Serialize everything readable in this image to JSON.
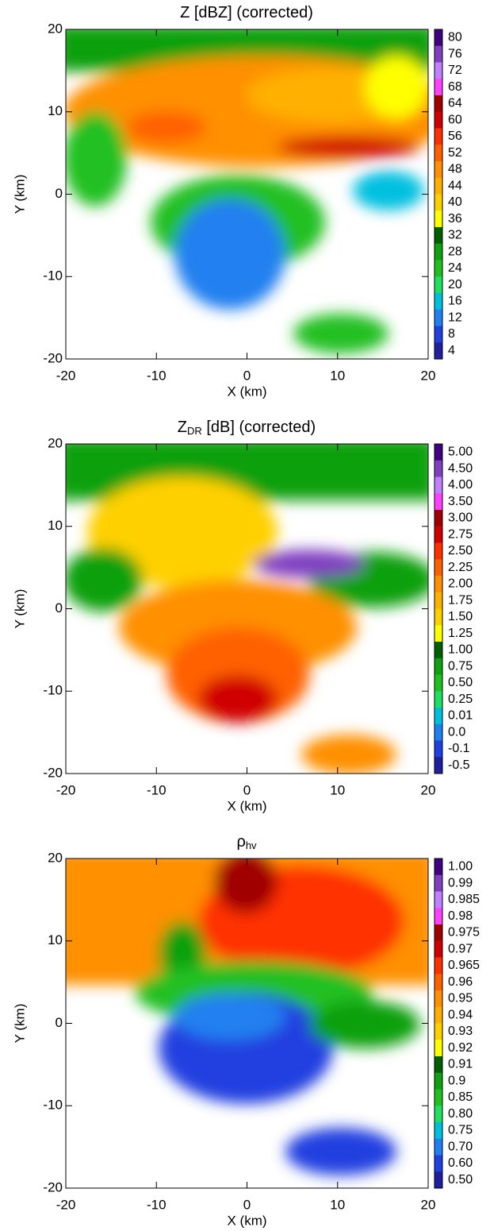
{
  "chart_data": [
    {
      "type": "heatmap",
      "title": "Z [dBZ] (corrected)",
      "xlabel": "X (km)",
      "ylabel": "Y (km)",
      "xlim": [
        -20,
        20
      ],
      "ylim": [
        -20,
        20
      ],
      "xticks": [
        -20,
        -10,
        0,
        10,
        20
      ],
      "yticks": [
        -20,
        -10,
        0,
        10,
        20
      ],
      "colorbar": {
        "levels": [
          80,
          76,
          72,
          68,
          64,
          60,
          56,
          52,
          48,
          44,
          40,
          36,
          32,
          28,
          24,
          20,
          16,
          12,
          8,
          4
        ],
        "colors": [
          "#400080",
          "#8040c0",
          "#c080ff",
          "#ff40ff",
          "#a00000",
          "#d00000",
          "#ff3000",
          "#ff6000",
          "#ff9000",
          "#ffb000",
          "#ffd000",
          "#ffff00",
          "#006000",
          "#10a010",
          "#20c020",
          "#20e060",
          "#00c0e0",
          "#2080f0",
          "#2040e0",
          "#1f1fa0"
        ]
      }
    },
    {
      "type": "heatmap",
      "title": "Z",
      "title_sub": "DR",
      "title_rest": " [dB] (corrected)",
      "xlabel": "X (km)",
      "ylabel": "Y (km)",
      "xlim": [
        -20,
        20
      ],
      "ylim": [
        -20,
        20
      ],
      "xticks": [
        -20,
        -10,
        0,
        10,
        20
      ],
      "yticks": [
        -20,
        -10,
        0,
        10,
        20
      ],
      "colorbar": {
        "levels": [
          {
            "value": 5,
            "label": "5.00"
          },
          {
            "value": 4.5,
            "label": "4.50"
          },
          {
            "value": 4,
            "label": "4.00"
          },
          {
            "value": 3.5,
            "label": "3.50"
          },
          {
            "value": 3,
            "label": "3.00"
          },
          2.75,
          {
            "value": 2.5,
            "label": "2.50"
          },
          2.25,
          {
            "value": 2,
            "label": "2.00"
          },
          1.75,
          {
            "value": 1.5,
            "label": "1.50"
          },
          1.25,
          {
            "value": 1,
            "label": "1.00"
          },
          0.75,
          {
            "value": 0.5,
            "label": "0.50"
          },
          0.25,
          0.01,
          {
            "value": 0,
            "label": "0.0"
          },
          -0.1,
          -0.5
        ],
        "colors": [
          "#400080",
          "#8040c0",
          "#c080ff",
          "#ff40ff",
          "#a00000",
          "#d00000",
          "#ff3000",
          "#ff6000",
          "#ff9000",
          "#ffb000",
          "#ffd000",
          "#ffff00",
          "#006000",
          "#10a010",
          "#20c020",
          "#20e060",
          "#00c0e0",
          "#2080f0",
          "#2040e0",
          "#1f1fa0"
        ]
      }
    },
    {
      "type": "heatmap",
      "title": "ρ",
      "title_sub": "hv",
      "xlabel": "X (km)",
      "ylabel": "Y (km)",
      "xlim": [
        -20,
        20
      ],
      "ylim": [
        -20,
        20
      ],
      "xticks": [
        -20,
        -10,
        0,
        10,
        20
      ],
      "yticks": [
        -20,
        -10,
        0,
        10,
        20
      ],
      "colorbar": {
        "levels": [
          {
            "value": 1,
            "label": "1.00"
          },
          0.99,
          0.985,
          0.98,
          0.975,
          0.97,
          0.965,
          0.96,
          0.95,
          0.94,
          0.93,
          0.92,
          0.91,
          0.9,
          0.85,
          {
            "value": 0.8,
            "label": "0.80"
          },
          0.75,
          {
            "value": 0.7,
            "label": "0.70"
          },
          {
            "value": 0.6,
            "label": "0.60"
          },
          {
            "value": 0.5,
            "label": "0.50"
          }
        ],
        "colors": [
          "#400080",
          "#8040c0",
          "#c080ff",
          "#ff40ff",
          "#a00000",
          "#d00000",
          "#ff3000",
          "#ff6000",
          "#ff9000",
          "#ffb000",
          "#ffd000",
          "#ffff00",
          "#006000",
          "#10a010",
          "#20c020",
          "#20e060",
          "#00c0e0",
          "#2080f0",
          "#2040e0",
          "#1f1fa0"
        ]
      }
    }
  ]
}
